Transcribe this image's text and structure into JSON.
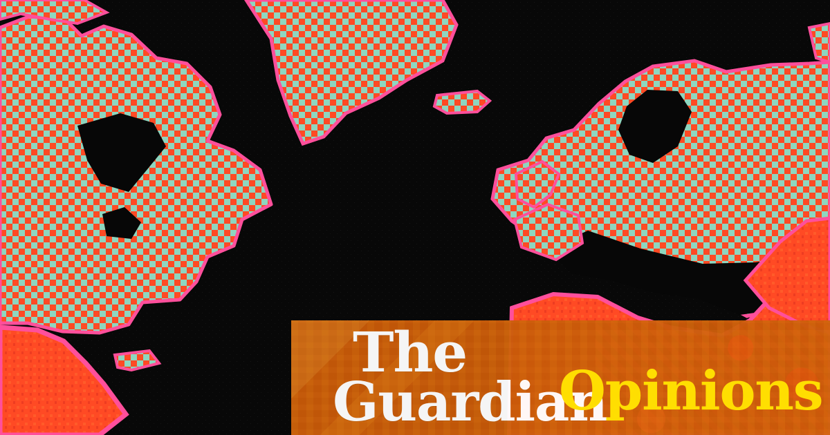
{
  "brand": {
    "name_line_1": "The",
    "name_line_2": "Guardian",
    "section": "Opinions"
  },
  "colors": {
    "background": "#070707",
    "map_coral": "#ff4a24",
    "map_mint": "#8ed6bf",
    "map_pink": "#ff4f9b",
    "brand_panel": "#c85a09",
    "brand_text": "#ffffff",
    "section_text": "#ffe500"
  },
  "image": {
    "subject": "pixel-art world map"
  }
}
